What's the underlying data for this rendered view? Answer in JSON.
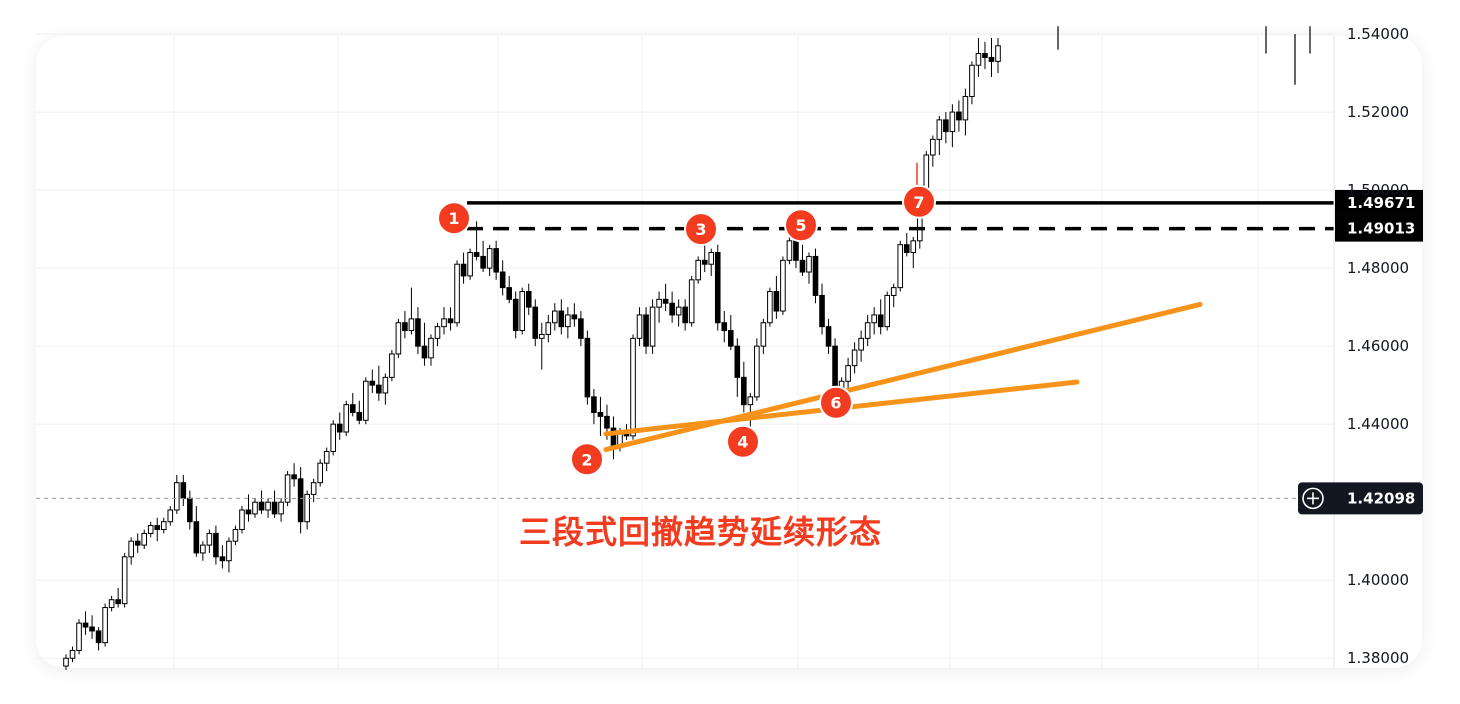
{
  "chart_data": {
    "type": "candlestick",
    "price_axis": {
      "tick_labels": [
        "1.38000",
        "1.40000",
        "1.42098",
        "1.44000",
        "1.46000",
        "1.48000",
        "1.49013",
        "1.49671",
        "1.50000",
        "1.52000",
        "1.54000"
      ],
      "ticks": [
        1.38,
        1.4,
        1.44,
        1.46,
        1.48,
        1.5,
        1.52,
        1.54
      ],
      "ylim": [
        1.3775,
        1.5395
      ]
    },
    "levels": [
      {
        "label": "1.49671",
        "value": 1.49671,
        "style": "solid",
        "color": "#000000"
      },
      {
        "label": "1.49013",
        "value": 1.49013,
        "style": "dashed",
        "color": "#000000"
      }
    ],
    "crosshair": {
      "label": "1.42098",
      "value": 1.42098
    },
    "pivots": [
      {
        "label": "1",
        "value": 1.4928
      },
      {
        "label": "2",
        "value": 1.431
      },
      {
        "label": "3",
        "value": 1.49
      },
      {
        "label": "4",
        "value": 1.4355
      },
      {
        "label": "5",
        "value": 1.491
      },
      {
        "label": "6",
        "value": 1.4455
      },
      {
        "label": "7",
        "value": 1.497
      }
    ],
    "trendlines": [
      {
        "color": "#f7931a",
        "from": 1.4335,
        "to": 1.4707
      },
      {
        "color": "#f7931a",
        "from": 1.4375,
        "to": 1.4508
      }
    ],
    "candles": [
      [
        1.378,
        1.381,
        1.377,
        1.38
      ],
      [
        1.38,
        1.383,
        1.379,
        1.382
      ],
      [
        1.382,
        1.39,
        1.381,
        1.389
      ],
      [
        1.389,
        1.392,
        1.386,
        1.388
      ],
      [
        1.388,
        1.391,
        1.385,
        1.387
      ],
      [
        1.387,
        1.388,
        1.382,
        1.384
      ],
      [
        1.384,
        1.394,
        1.383,
        1.393
      ],
      [
        1.393,
        1.396,
        1.392,
        1.395
      ],
      [
        1.395,
        1.398,
        1.393,
        1.394
      ],
      [
        1.394,
        1.407,
        1.393,
        1.406
      ],
      [
        1.406,
        1.411,
        1.404,
        1.41
      ],
      [
        1.41,
        1.412,
        1.407,
        1.409
      ],
      [
        1.409,
        1.413,
        1.408,
        1.412
      ],
      [
        1.412,
        1.415,
        1.411,
        1.414
      ],
      [
        1.414,
        1.416,
        1.41,
        1.413
      ],
      [
        1.413,
        1.416,
        1.412,
        1.415
      ],
      [
        1.415,
        1.419,
        1.414,
        1.418
      ],
      [
        1.418,
        1.427,
        1.417,
        1.425
      ],
      [
        1.425,
        1.427,
        1.419,
        1.421
      ],
      [
        1.421,
        1.423,
        1.413,
        1.415
      ],
      [
        1.415,
        1.419,
        1.406,
        1.407
      ],
      [
        1.407,
        1.41,
        1.405,
        1.409
      ],
      [
        1.409,
        1.413,
        1.407,
        1.412
      ],
      [
        1.412,
        1.414,
        1.404,
        1.406
      ],
      [
        1.406,
        1.409,
        1.403,
        1.405
      ],
      [
        1.405,
        1.411,
        1.402,
        1.41
      ],
      [
        1.41,
        1.414,
        1.409,
        1.413
      ],
      [
        1.413,
        1.419,
        1.412,
        1.418
      ],
      [
        1.418,
        1.422,
        1.415,
        1.417
      ],
      [
        1.417,
        1.421,
        1.416,
        1.42
      ],
      [
        1.42,
        1.423,
        1.417,
        1.418
      ],
      [
        1.418,
        1.421,
        1.416,
        1.42
      ],
      [
        1.42,
        1.423,
        1.416,
        1.417
      ],
      [
        1.417,
        1.421,
        1.415,
        1.42
      ],
      [
        1.42,
        1.428,
        1.419,
        1.427
      ],
      [
        1.427,
        1.43,
        1.424,
        1.426
      ],
      [
        1.426,
        1.429,
        1.412,
        1.415
      ],
      [
        1.415,
        1.423,
        1.413,
        1.422
      ],
      [
        1.422,
        1.426,
        1.42,
        1.425
      ],
      [
        1.425,
        1.431,
        1.424,
        1.43
      ],
      [
        1.43,
        1.434,
        1.428,
        1.433
      ],
      [
        1.433,
        1.441,
        1.432,
        1.44
      ],
      [
        1.44,
        1.443,
        1.436,
        1.438
      ],
      [
        1.438,
        1.446,
        1.437,
        1.445
      ],
      [
        1.445,
        1.448,
        1.442,
        1.443
      ],
      [
        1.443,
        1.446,
        1.44,
        1.441
      ],
      [
        1.441,
        1.452,
        1.44,
        1.451
      ],
      [
        1.451,
        1.454,
        1.448,
        1.45
      ],
      [
        1.45,
        1.455,
        1.446,
        1.448
      ],
      [
        1.448,
        1.453,
        1.445,
        1.452
      ],
      [
        1.452,
        1.459,
        1.451,
        1.458
      ],
      [
        1.458,
        1.467,
        1.457,
        1.466
      ],
      [
        1.466,
        1.469,
        1.462,
        1.464
      ],
      [
        1.464,
        1.475,
        1.463,
        1.467
      ],
      [
        1.467,
        1.47,
        1.458,
        1.46
      ],
      [
        1.46,
        1.466,
        1.455,
        1.457
      ],
      [
        1.457,
        1.463,
        1.455,
        1.462
      ],
      [
        1.462,
        1.466,
        1.46,
        1.465
      ],
      [
        1.465,
        1.47,
        1.463,
        1.467
      ],
      [
        1.467,
        1.47,
        1.464,
        1.466
      ],
      [
        1.466,
        1.482,
        1.465,
        1.481
      ],
      [
        1.481,
        1.484,
        1.476,
        1.478
      ],
      [
        1.478,
        1.485,
        1.477,
        1.484
      ],
      [
        1.484,
        1.492,
        1.482,
        1.483
      ],
      [
        1.483,
        1.487,
        1.479,
        1.48
      ],
      [
        1.48,
        1.486,
        1.478,
        1.485
      ],
      [
        1.485,
        1.487,
        1.477,
        1.479
      ],
      [
        1.479,
        1.482,
        1.473,
        1.475
      ],
      [
        1.475,
        1.478,
        1.471,
        1.472
      ],
      [
        1.472,
        1.474,
        1.462,
        1.464
      ],
      [
        1.464,
        1.475,
        1.463,
        1.474
      ],
      [
        1.474,
        1.476,
        1.468,
        1.47
      ],
      [
        1.47,
        1.472,
        1.46,
        1.462
      ],
      [
        1.462,
        1.466,
        1.454,
        1.463
      ],
      [
        1.463,
        1.468,
        1.461,
        1.466
      ],
      [
        1.466,
        1.471,
        1.464,
        1.469
      ],
      [
        1.469,
        1.472,
        1.463,
        1.465
      ],
      [
        1.465,
        1.47,
        1.462,
        1.468
      ],
      [
        1.468,
        1.471,
        1.465,
        1.467
      ],
      [
        1.467,
        1.469,
        1.46,
        1.462
      ],
      [
        1.462,
        1.464,
        1.445,
        1.447
      ],
      [
        1.447,
        1.449,
        1.44,
        1.443
      ],
      [
        1.443,
        1.447,
        1.437,
        1.442
      ],
      [
        1.442,
        1.445,
        1.436,
        1.439
      ],
      [
        1.439,
        1.442,
        1.431,
        1.434
      ],
      [
        1.434,
        1.439,
        1.433,
        1.438
      ],
      [
        1.438,
        1.44,
        1.436,
        1.437
      ],
      [
        1.437,
        1.463,
        1.436,
        1.462
      ],
      [
        1.462,
        1.47,
        1.46,
        1.468
      ],
      [
        1.468,
        1.47,
        1.458,
        1.46
      ],
      [
        1.46,
        1.472,
        1.458,
        1.47
      ],
      [
        1.47,
        1.474,
        1.466,
        1.472
      ],
      [
        1.472,
        1.476,
        1.469,
        1.471
      ],
      [
        1.471,
        1.474,
        1.466,
        1.468
      ],
      [
        1.468,
        1.472,
        1.465,
        1.47
      ],
      [
        1.47,
        1.472,
        1.464,
        1.466
      ],
      [
        1.466,
        1.478,
        1.465,
        1.477
      ],
      [
        1.477,
        1.483,
        1.476,
        1.482
      ],
      [
        1.482,
        1.488,
        1.479,
        1.481
      ],
      [
        1.481,
        1.485,
        1.478,
        1.484
      ],
      [
        1.484,
        1.486,
        1.464,
        1.466
      ],
      [
        1.466,
        1.469,
        1.461,
        1.464
      ],
      [
        1.464,
        1.468,
        1.459,
        1.46
      ],
      [
        1.46,
        1.462,
        1.447,
        1.452
      ],
      [
        1.452,
        1.456,
        1.443,
        1.445
      ],
      [
        1.445,
        1.448,
        1.436,
        1.447
      ],
      [
        1.447,
        1.462,
        1.446,
        1.46
      ],
      [
        1.46,
        1.467,
        1.458,
        1.466
      ],
      [
        1.466,
        1.475,
        1.465,
        1.474
      ],
      [
        1.474,
        1.478,
        1.467,
        1.469
      ],
      [
        1.469,
        1.483,
        1.468,
        1.482
      ],
      [
        1.482,
        1.489,
        1.481,
        1.487
      ],
      [
        1.487,
        1.49,
        1.48,
        1.482
      ],
      [
        1.482,
        1.486,
        1.478,
        1.479
      ],
      [
        1.479,
        1.484,
        1.476,
        1.483
      ],
      [
        1.483,
        1.485,
        1.471,
        1.473
      ],
      [
        1.473,
        1.476,
        1.463,
        1.465
      ],
      [
        1.465,
        1.467,
        1.458,
        1.46
      ],
      [
        1.46,
        1.462,
        1.445,
        1.448
      ],
      [
        1.448,
        1.452,
        1.444,
        1.451
      ],
      [
        1.451,
        1.457,
        1.449,
        1.455
      ],
      [
        1.455,
        1.461,
        1.453,
        1.459
      ],
      [
        1.459,
        1.464,
        1.456,
        1.462
      ],
      [
        1.462,
        1.468,
        1.46,
        1.466
      ],
      [
        1.466,
        1.47,
        1.463,
        1.468
      ],
      [
        1.468,
        1.472,
        1.463,
        1.465
      ],
      [
        1.465,
        1.474,
        1.464,
        1.473
      ],
      [
        1.473,
        1.476,
        1.47,
        1.475
      ],
      [
        1.475,
        1.487,
        1.474,
        1.486
      ],
      [
        1.486,
        1.489,
        1.483,
        1.484
      ],
      [
        1.484,
        1.488,
        1.48,
        1.487
      ],
      [
        1.487,
        1.5,
        1.485,
        1.499
      ],
      [
        1.499,
        1.51,
        1.497,
        1.509
      ],
      [
        1.509,
        1.514,
        1.506,
        1.513
      ],
      [
        1.513,
        1.519,
        1.509,
        1.518
      ],
      [
        1.518,
        1.52,
        1.512,
        1.515
      ],
      [
        1.515,
        1.522,
        1.511,
        1.52
      ],
      [
        1.52,
        1.523,
        1.515,
        1.518
      ],
      [
        1.518,
        1.526,
        1.514,
        1.524
      ],
      [
        1.524,
        1.533,
        1.522,
        1.532
      ],
      [
        1.532,
        1.539,
        1.529,
        1.535
      ],
      [
        1.535,
        1.538,
        1.531,
        1.534
      ],
      [
        1.534,
        1.539,
        1.529,
        1.533
      ],
      [
        1.533,
        1.539,
        1.53,
        1.537
      ]
    ]
  },
  "annotations": {
    "pivot_labels": [
      "1",
      "2",
      "3",
      "4",
      "5",
      "6",
      "7"
    ],
    "caption": "三段式回撤趋势延续形态"
  },
  "colors": {
    "candle": "#000000",
    "grid": "#eef0f3",
    "trend": "#f7931a",
    "marker": "#f23b1f",
    "caption": "#f23b1f"
  }
}
